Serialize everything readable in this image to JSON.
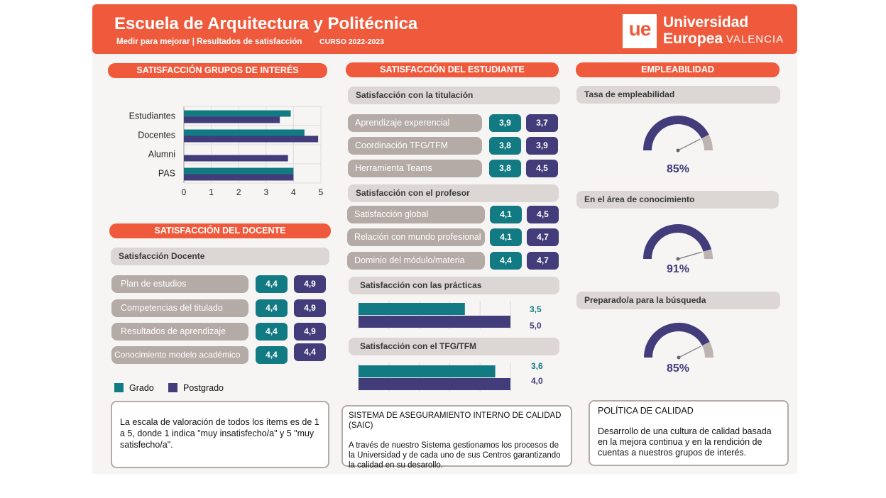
{
  "header": {
    "title": "Escuela de Arquitectura y Politécnica",
    "subtitle": "Medir para mejorar | Resultados de satisfacción",
    "course": "CURSO 2022-2023",
    "logo_mark": "ue",
    "logo_line1": "Universidad",
    "logo_line2": "Europea",
    "logo_city": "VALENCIA"
  },
  "colors": {
    "accent": "#f05a3c",
    "grado": "#127a82",
    "postgrado": "#433c7a",
    "item_bg": "#b4aaa6",
    "group_bg": "#dcd6d4"
  },
  "grupos": {
    "title": "SATISFACCIÓN GRUPOS DE INTERÉS",
    "chart_data": {
      "type": "bar",
      "orientation": "horizontal",
      "categories": [
        "Estudiantes",
        "Docentes",
        "Alumni",
        "PAS"
      ],
      "series": [
        {
          "name": "Grado",
          "values": [
            3.9,
            4.4,
            null,
            4.0
          ]
        },
        {
          "name": "Postgrado",
          "values": [
            3.5,
            4.9,
            3.8,
            4.0
          ]
        }
      ],
      "xlim": [
        0,
        5
      ],
      "xticks": [
        "0",
        "1",
        "2",
        "3",
        "4",
        "5"
      ],
      "grid": true
    }
  },
  "docente": {
    "title": "SATISFACCIÓN DEL DOCENTE",
    "group": "Satisfacción Docente",
    "items": [
      {
        "label": "Plan de estudios",
        "grado": "4,4",
        "postgrado": "4,9"
      },
      {
        "label": "Competencias del titulado",
        "grado": "4,4",
        "postgrado": "4,9"
      },
      {
        "label": "Resultados de aprendizaje",
        "grado": "4,4",
        "postgrado": "4,9"
      },
      {
        "label": "Conocimiento modelo académico",
        "grado": "4,4",
        "postgrado": "4,4"
      }
    ]
  },
  "legend": {
    "grado": "Grado",
    "postgrado": "Postgrado"
  },
  "escala_note": "La escala de valoración de todos los ítems es de 1 a 5, donde 1 indica \"muy insatisfecho/a\" y 5 \"muy satisfecho/a\".",
  "estudiante": {
    "title": "SATISFACCIÓN DEL ESTUDIANTE",
    "titulacion": {
      "group": "Satisfacción con la titulación",
      "items": [
        {
          "label": "Aprendizaje experencial",
          "grado": "3,9",
          "postgrado": "3,7"
        },
        {
          "label": "Coordinación TFG/TFM",
          "grado": "3,8",
          "postgrado": "3,9"
        },
        {
          "label": "Herramienta Teams",
          "grado": "3,8",
          "postgrado": "4,5"
        }
      ]
    },
    "profesor": {
      "group": "Satisfacción con el profesor",
      "items": [
        {
          "label": "Satisfacción global",
          "grado": "4,1",
          "postgrado": "4,5"
        },
        {
          "label": "Relación con mundo profesional",
          "grado": "4,1",
          "postgrado": "4,7"
        },
        {
          "label": "Dominio del módulo/materia",
          "grado": "4,4",
          "postgrado": "4,7"
        }
      ]
    },
    "practicas": {
      "group": "Satisfacción con las prácticas",
      "chart_data": {
        "type": "bar",
        "orientation": "horizontal",
        "series": [
          {
            "name": "Grado",
            "values": [
              3.5
            ]
          },
          {
            "name": "Postgrado",
            "values": [
              5.0
            ]
          }
        ],
        "xlim": [
          0,
          5
        ]
      },
      "label_grado": "3,5",
      "label_postgrado": "5,0"
    },
    "tfg": {
      "group": "Satisfacción con el TFG/TFM",
      "chart_data": {
        "type": "bar",
        "orientation": "horizontal",
        "series": [
          {
            "name": "Grado",
            "values": [
              3.6
            ]
          },
          {
            "name": "Postgrado",
            "values": [
              4.0
            ]
          }
        ],
        "xlim": [
          0,
          4
        ]
      },
      "label_grado": "3,6",
      "label_postgrado": "4,0"
    }
  },
  "saic": {
    "title": "SISTEMA DE ASEGURAMIENTO INTERNO DE CALIDAD (SAIC)",
    "text": "A través de nuestro Sistema gestionamos los procesos de la Universidad y de cada uno de sus Centros garantizando la calidad en su desarollo."
  },
  "empleabilidad": {
    "title": "EMPLEABILIDAD",
    "gauges": [
      {
        "label": "Tasa de empleabilidad",
        "value": 85,
        "text": "85%"
      },
      {
        "label": "En el área de conocimiento",
        "value": 91,
        "text": "91%"
      },
      {
        "label": "Preparado/a para la búsqueda",
        "value": 85,
        "text": "85%"
      }
    ]
  },
  "politica": {
    "title": "POLÍTICA DE CALIDAD",
    "text": "Desarrollo de una cultura de calidad basada en la mejora continua y en la rendición de cuentas a nuestros grupos de interés."
  }
}
